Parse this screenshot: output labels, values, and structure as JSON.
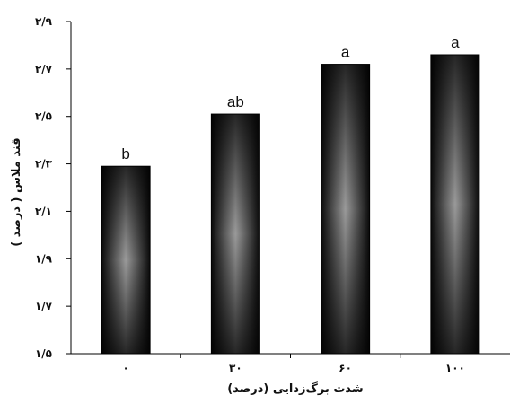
{
  "chart_data": {
    "type": "bar",
    "categories": [
      "۰",
      "۳۰",
      "۶۰",
      "۱۰۰"
    ],
    "values": [
      2.29,
      2.51,
      2.72,
      2.76
    ],
    "bar_labels": [
      "b",
      "ab",
      "a",
      "a"
    ],
    "xlabel": "شدت برگ‌زدایی (درصد)",
    "ylabel": "قند ملاس ( درصد )",
    "ylim": [
      1.5,
      2.9
    ],
    "yticks": [
      {
        "value": 1.5,
        "label": "۱/۵"
      },
      {
        "value": 1.7,
        "label": "۱/۷"
      },
      {
        "value": 1.9,
        "label": "۱/۹"
      },
      {
        "value": 2.1,
        "label": "۲/۱"
      },
      {
        "value": 2.3,
        "label": "۲/۳"
      },
      {
        "value": 2.5,
        "label": "۲/۵"
      },
      {
        "value": 2.7,
        "label": "۲/۷"
      },
      {
        "value": 2.9,
        "label": "۲/۹"
      }
    ],
    "grid": false,
    "legend": "none",
    "bar_color": "#2e2e2e",
    "bar_highlight": "#9a9a9a"
  }
}
